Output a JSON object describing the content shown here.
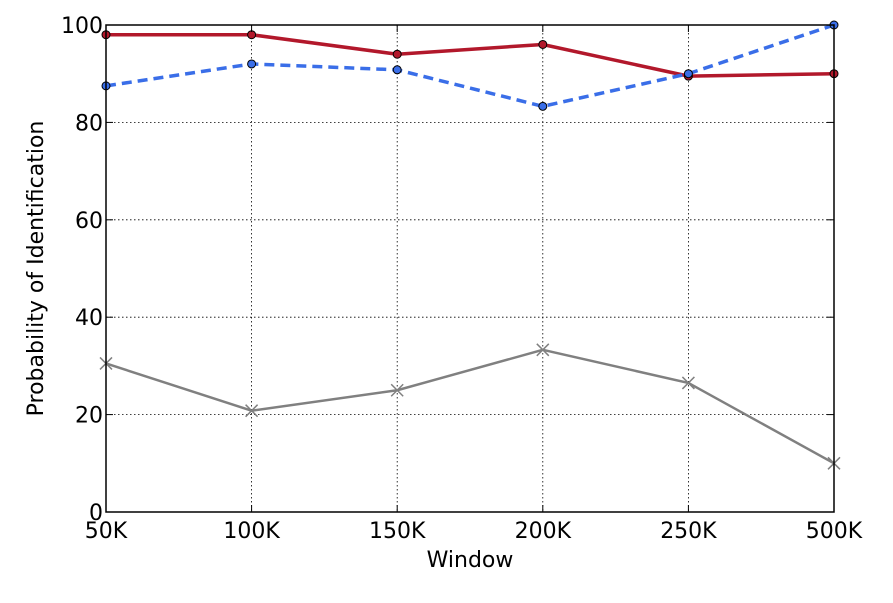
{
  "chart_data": {
    "type": "line",
    "xlabel": "Window",
    "ylabel": "Probability of Identification",
    "categories": [
      "50K",
      "100K",
      "150K",
      "200K",
      "250K",
      "500K"
    ],
    "ylim": [
      0,
      100
    ],
    "yticks": [
      0,
      20,
      40,
      60,
      80,
      100
    ],
    "grid": true,
    "series": [
      {
        "values": [
          98,
          98,
          94,
          96,
          89.5,
          90
        ],
        "color": "#b2182b",
        "linestyle": "solid",
        "marker": "circle"
      },
      {
        "values": [
          87.5,
          92,
          90.8,
          83.3,
          90,
          100
        ],
        "color": "#3a6ee8",
        "linestyle": "dashed",
        "marker": "circle"
      },
      {
        "values": [
          30.5,
          20.8,
          25,
          33.3,
          26.5,
          10
        ],
        "color": "#808080",
        "linestyle": "solid",
        "marker": "x"
      }
    ]
  }
}
